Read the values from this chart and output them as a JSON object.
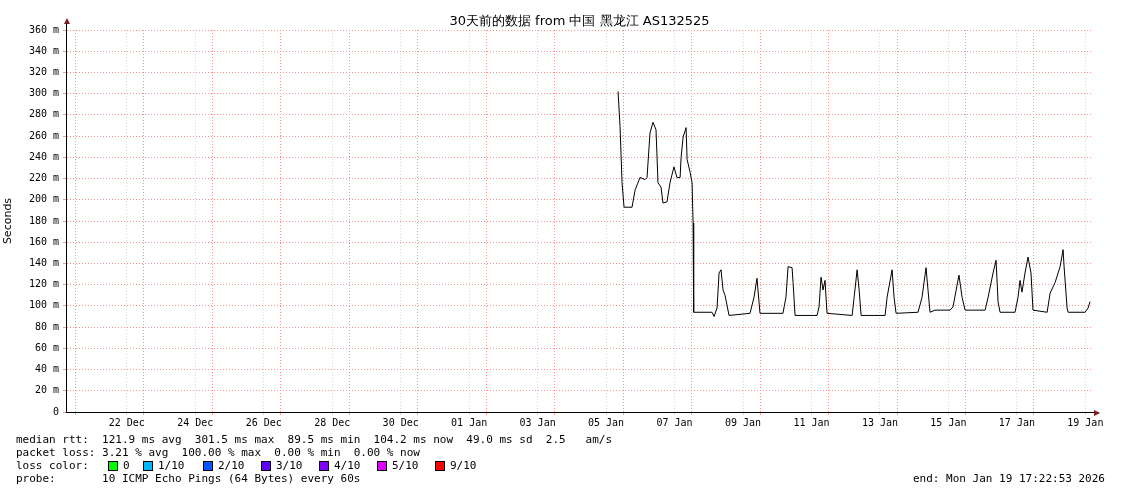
{
  "chart_data": {
    "type": "line",
    "title": "30天前的数据 from 中国 黑龙江 AS132525",
    "ylabel": "Seconds",
    "marker": "none",
    "grid": true,
    "xlim": [
      "2025-12-20T17:22",
      "2026-01-19T17:22"
    ],
    "xticks": [
      {
        "value": "2025-12-21T00:00",
        "label": null
      },
      {
        "value": "2025-12-22T12:00",
        "label": "22 Dec"
      },
      {
        "value": "2025-12-23T00:00",
        "label": null
      },
      {
        "value": "2025-12-24T12:00",
        "label": "24 Dec"
      },
      {
        "value": "2025-12-25T00:00",
        "label": null
      },
      {
        "value": "2025-12-26T12:00",
        "label": "26 Dec"
      },
      {
        "value": "2025-12-27T00:00",
        "label": null
      },
      {
        "value": "2025-12-28T12:00",
        "label": "28 Dec"
      },
      {
        "value": "2025-12-29T00:00",
        "label": null
      },
      {
        "value": "2025-12-30T12:00",
        "label": "30 Dec"
      },
      {
        "value": "2025-12-31T00:00",
        "label": null
      },
      {
        "value": "2026-01-01T12:00",
        "label": "01 Jan"
      },
      {
        "value": "2026-01-02T00:00",
        "label": null
      },
      {
        "value": "2026-01-03T12:00",
        "label": "03 Jan"
      },
      {
        "value": "2026-01-04T00:00",
        "label": null
      },
      {
        "value": "2026-01-05T12:00",
        "label": "05 Jan"
      },
      {
        "value": "2026-01-06T00:00",
        "label": null
      },
      {
        "value": "2026-01-07T12:00",
        "label": "07 Jan"
      },
      {
        "value": "2026-01-08T00:00",
        "label": null
      },
      {
        "value": "2026-01-09T12:00",
        "label": "09 Jan"
      },
      {
        "value": "2026-01-10T00:00",
        "label": null
      },
      {
        "value": "2026-01-11T12:00",
        "label": "11 Jan"
      },
      {
        "value": "2026-01-12T00:00",
        "label": null
      },
      {
        "value": "2026-01-13T12:00",
        "label": "13 Jan"
      },
      {
        "value": "2026-01-14T00:00",
        "label": null
      },
      {
        "value": "2026-01-15T12:00",
        "label": "15 Jan"
      },
      {
        "value": "2026-01-16T00:00",
        "label": null
      },
      {
        "value": "2026-01-17T12:00",
        "label": "17 Jan"
      },
      {
        "value": "2026-01-18T00:00",
        "label": null
      },
      {
        "value": "2026-01-19T12:00",
        "label": "19 Jan"
      }
    ],
    "ylim": [
      0,
      360
    ],
    "yticks": [
      0,
      {
        "value": 20,
        "label": "20 m"
      },
      {
        "value": 40,
        "label": "40 m"
      },
      {
        "value": 60,
        "label": "60 m"
      },
      {
        "value": 80,
        "label": "80 m"
      },
      {
        "value": 100,
        "label": "100 m"
      },
      {
        "value": 120,
        "label": "120 m"
      },
      {
        "value": 140,
        "label": "140 m"
      },
      {
        "value": 160,
        "label": "160 m"
      },
      {
        "value": 180,
        "label": "180 m"
      },
      {
        "value": 200,
        "label": "200 m"
      },
      {
        "value": 220,
        "label": "220 m"
      },
      {
        "value": 240,
        "label": "240 m"
      },
      {
        "value": 260,
        "label": "260 m"
      },
      {
        "value": 280,
        "label": "280 m"
      },
      {
        "value": 300,
        "label": "300 m"
      },
      {
        "value": 320,
        "label": "320 m"
      },
      {
        "value": 340,
        "label": "340 m"
      },
      {
        "value": 360,
        "label": "360 m"
      }
    ],
    "series": [
      {
        "color": "#000000",
        "x": [
          "2026-01-05T20:24",
          "2026-01-05T21:48",
          "2026-01-05T23:12",
          "2026-01-06T00:36",
          "2026-01-06T06:12",
          "2026-01-06T08:18",
          "2026-01-06T11:48",
          "2026-01-06T15:18",
          "2026-01-06T16:42",
          "2026-01-06T18:48",
          "2026-01-06T20:54",
          "2026-01-06T23:00",
          "2026-01-07T00:24",
          "2026-01-07T02:30",
          "2026-01-07T03:54",
          "2026-01-07T06:42",
          "2026-01-07T08:48",
          "2026-01-07T11:36",
          "2026-01-07T13:42",
          "2026-01-07T15:54",
          "2026-01-07T16:36",
          "2026-01-07T18:00",
          "2026-01-07T20:06",
          "2026-01-07T20:48",
          "2026-01-07T22:54",
          "2026-01-08T00:18",
          "2026-01-08T01:00",
          "2026-01-08T01:24",
          "2026-01-08T14:18",
          "2026-01-08T15:42",
          "2026-01-08T17:48",
          "2026-01-08T19:12",
          "2026-01-08T20:36",
          "2026-01-08T22:00",
          "2026-01-08T23:24",
          "2026-01-09T02:12",
          "2026-01-09T16:54",
          "2026-01-09T19:42",
          "2026-01-09T21:48",
          "2026-01-09T23:54",
          "2026-01-10T16:00",
          "2026-01-10T18:06",
          "2026-01-10T19:36",
          "2026-01-10T22:24",
          "2026-01-10T23:06",
          "2026-01-11T00:30",
          "2026-01-11T15:54",
          "2026-01-11T17:18",
          "2026-01-11T18:42",
          "2026-01-11T20:06",
          "2026-01-11T21:30",
          "2026-01-11T22:54",
          "2026-01-12T16:30",
          "2026-01-12T17:54",
          "2026-01-12T20:00",
          "2026-01-12T21:24",
          "2026-01-12T22:48",
          "2026-01-13T15:36",
          "2026-01-13T17:00",
          "2026-01-13T20:30",
          "2026-01-13T21:54",
          "2026-01-13T23:18",
          "2026-01-14T14:42",
          "2026-01-14T17:30",
          "2026-01-14T20:18",
          "2026-01-14T21:42",
          "2026-01-14T23:06",
          "2026-01-15T02:36",
          "2026-01-15T13:06",
          "2026-01-15T15:12",
          "2026-01-15T19:24",
          "2026-01-15T21:36",
          "2026-01-15T23:42",
          "2026-01-16T13:42",
          "2026-01-16T15:48",
          "2026-01-16T19:18",
          "2026-01-16T21:24",
          "2026-01-16T22:48",
          "2026-01-17T00:12",
          "2026-01-17T10:42",
          "2026-01-17T12:48",
          "2026-01-17T14:12",
          "2026-01-17T15:36",
          "2026-01-17T17:42",
          "2026-01-17T19:48",
          "2026-01-17T21:54",
          "2026-01-17T23:18",
          "2026-01-18T09:12",
          "2026-01-18T11:18",
          "2026-01-18T14:48",
          "2026-01-18T18:18",
          "2026-01-18T20:24",
          "2026-01-18T21:06",
          "2026-01-18T23:12",
          "2026-01-18T23:54",
          "2026-01-19T11:48",
          "2026-01-19T13:54",
          "2026-01-19T15:18"
        ],
        "values": [
          302,
          269,
          216,
          193,
          193,
          209,
          221,
          219,
          221,
          263,
          273,
          266,
          216,
          212,
          197,
          198,
          216,
          231,
          221,
          221,
          240,
          259,
          268,
          238,
          226,
          216,
          178,
          94,
          94,
          90,
          98,
          131,
          134,
          115,
          110,
          91,
          93,
          108,
          126,
          93,
          93,
          108,
          137,
          136,
          122,
          91,
          91,
          99,
          127,
          115,
          124,
          93,
          91,
          108,
          134,
          115,
          91,
          91,
          108,
          134,
          108,
          93,
          94,
          108,
          136,
          115,
          94,
          96,
          96,
          99,
          129,
          108,
          96,
          96,
          108,
          131,
          143,
          104,
          94,
          94,
          108,
          124,
          113,
          131,
          146,
          131,
          96,
          94,
          112,
          122,
          137,
          153,
          137,
          98,
          94,
          94,
          98,
          104
        ]
      }
    ],
    "annotations": [
      "median rtt:  121.9 ms avg  301.5 ms max  89.5 ms min  104.2 ms now  49.0 ms sd  2.5   am/s",
      "packet loss: 3.21 % avg  100.00 % max  0.00 % min  0.00 % now",
      "loss color:",
      "0",
      "1/10",
      "2/10",
      "3/10",
      "4/10",
      "5/10",
      "9/10",
      "probe:       10 ICMP Echo Pings (64 Bytes) every 60s",
      "end: Mon Jan 19 17:22:53 2026"
    ]
  }
}
